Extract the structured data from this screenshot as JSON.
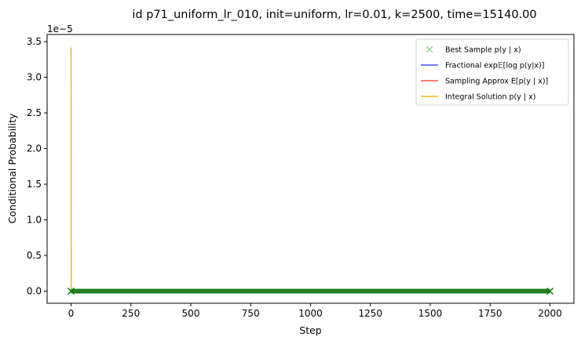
{
  "chart_data": {
    "type": "line",
    "title": "id p71_uniform_lr_010, init=uniform, lr=0.01, k=2500, time=15140.00",
    "xlabel": "Step",
    "ylabel": "Conditional Probability",
    "y_offset_text": "1e−5",
    "xlim": [
      -100,
      2100
    ],
    "ylim": [
      -0.17,
      3.6
    ],
    "y_scale_note": "values in units of 1e-5",
    "xticks": [
      0,
      250,
      500,
      750,
      1000,
      1250,
      1500,
      1750,
      2000
    ],
    "xtick_labels": [
      "0",
      "250",
      "500",
      "750",
      "1000",
      "1250",
      "1500",
      "1750",
      "2000"
    ],
    "yticks": [
      0.0,
      0.5,
      1.0,
      1.5,
      2.0,
      2.5,
      3.0,
      3.5
    ],
    "ytick_labels": [
      "0.0",
      "0.5",
      "1.0",
      "1.5",
      "2.0",
      "2.5",
      "3.0",
      "3.5"
    ],
    "grid": false,
    "legend_position": "top-right",
    "series": [
      {
        "name": "Best Sample p(y | x)",
        "style": "marker-x",
        "color": "#2ca02c",
        "x": [
          0,
          2000
        ],
        "values": [
          0.0,
          0.0
        ]
      },
      {
        "name": "Fractional exp𝔼[log p(y|x)]",
        "style": "line",
        "color": "#0000ff",
        "x": [
          0,
          2000
        ],
        "values": [
          0.0,
          0.0
        ]
      },
      {
        "name": "Sampling Approx E[p(y | x)]",
        "style": "line",
        "color": "#ff0000",
        "x": [
          0,
          2000
        ],
        "values": [
          0.0,
          0.0
        ]
      },
      {
        "name": "Integral Solution p(y | x)",
        "style": "line",
        "color": "#ffa500",
        "x": [
          0,
          0,
          1,
          2000
        ],
        "values": [
          3.42,
          3.42,
          0.0,
          0.0
        ]
      }
    ]
  }
}
